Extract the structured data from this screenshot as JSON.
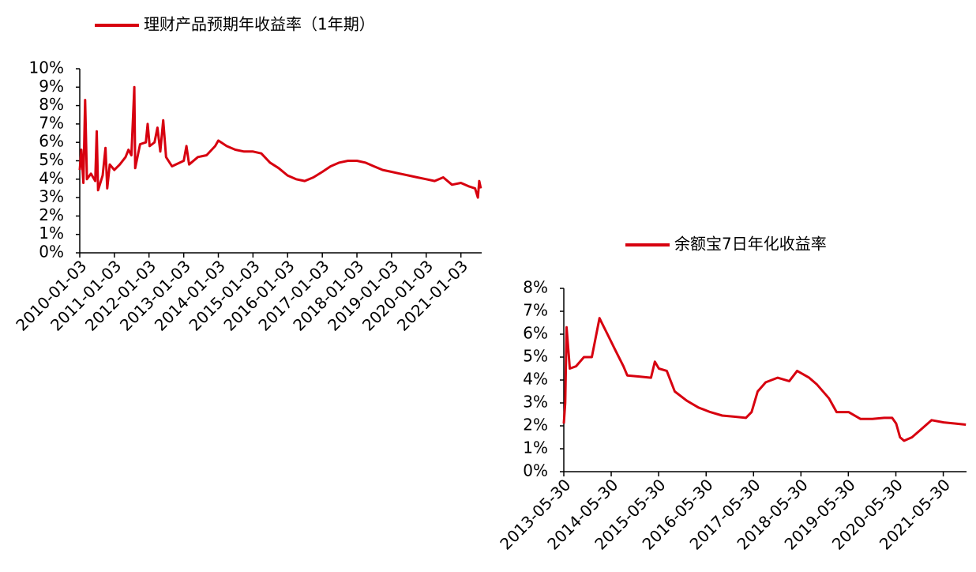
{
  "chart_data": [
    {
      "type": "line",
      "series": [
        {
          "name": "理财产品预期年收益率（1年期）",
          "color": "#d7000f",
          "x": [
            "2010-01-03",
            "2010-01-20",
            "2010-02-10",
            "2010-03-01",
            "2010-03-20",
            "2010-05-01",
            "2010-06-15",
            "2010-07-01",
            "2010-07-15",
            "2010-09-01",
            "2010-10-01",
            "2010-10-20",
            "2010-11-15",
            "2011-01-03",
            "2011-03-01",
            "2011-05-01",
            "2011-06-01",
            "2011-07-01",
            "2011-08-01",
            "2011-08-10",
            "2011-10-01",
            "2011-12-01",
            "2011-12-20",
            "2012-01-10",
            "2012-03-01",
            "2012-04-01",
            "2012-05-01",
            "2012-06-01",
            "2012-07-01",
            "2012-09-01",
            "2013-01-03",
            "2013-02-01",
            "2013-03-01",
            "2013-06-01",
            "2013-09-01",
            "2013-12-01",
            "2014-01-03",
            "2014-04-01",
            "2014-07-01",
            "2014-10-01",
            "2015-01-03",
            "2015-04-01",
            "2015-07-01",
            "2015-10-01",
            "2016-01-03",
            "2016-04-01",
            "2016-07-01",
            "2016-10-01",
            "2017-01-03",
            "2017-04-01",
            "2017-07-01",
            "2017-10-01",
            "2018-01-03",
            "2018-04-01",
            "2018-07-01",
            "2018-10-01",
            "2019-01-03",
            "2019-04-01",
            "2019-07-01",
            "2019-10-01",
            "2020-01-03",
            "2020-04-01",
            "2020-07-01",
            "2020-10-01",
            "2021-01-03",
            "2021-04-01",
            "2021-06-01",
            "2021-07-01",
            "2021-07-15",
            "2021-08-01"
          ],
          "values": [
            4.5,
            5.6,
            3.8,
            8.3,
            4.0,
            4.3,
            3.9,
            6.6,
            3.4,
            4.2,
            5.7,
            3.5,
            4.8,
            4.5,
            4.8,
            5.2,
            5.6,
            5.3,
            9.0,
            4.6,
            5.9,
            6.0,
            7.0,
            5.8,
            6.0,
            6.8,
            5.5,
            7.2,
            5.2,
            4.7,
            5.0,
            5.8,
            4.8,
            5.2,
            5.3,
            5.8,
            6.1,
            5.8,
            5.6,
            5.5,
            5.5,
            5.4,
            4.9,
            4.6,
            4.2,
            4.0,
            3.9,
            4.1,
            4.4,
            4.7,
            4.9,
            5.0,
            5.0,
            4.9,
            4.7,
            4.5,
            4.4,
            4.3,
            4.2,
            4.1,
            4.0,
            3.9,
            4.1,
            3.7,
            3.8,
            3.6,
            3.5,
            3.0,
            3.9,
            3.5
          ]
        }
      ],
      "xlim": [
        "2010-01-03",
        "2021-08-10"
      ],
      "xticks": [
        "2010-01-03",
        "2011-01-03",
        "2012-01-03",
        "2013-01-03",
        "2014-01-03",
        "2015-01-03",
        "2016-01-03",
        "2017-01-03",
        "2018-01-03",
        "2019-01-03",
        "2020-01-03",
        "2021-01-03"
      ],
      "ylim": [
        0,
        10
      ],
      "yticks": [
        {
          "value": 0,
          "label": "0%"
        },
        {
          "value": 1,
          "label": "1%"
        },
        {
          "value": 2,
          "label": "2%"
        },
        {
          "value": 3,
          "label": "3%"
        },
        {
          "value": 4,
          "label": "4%"
        },
        {
          "value": 5,
          "label": "5%"
        },
        {
          "value": 6,
          "label": "6%"
        },
        {
          "value": 7,
          "label": "7%"
        },
        {
          "value": 8,
          "label": "8%"
        },
        {
          "value": 9,
          "label": "9%"
        },
        {
          "value": 10,
          "label": "10%"
        }
      ]
    },
    {
      "type": "line",
      "series": [
        {
          "name": "余额宝7日年化收益率",
          "color": "#d7000f",
          "x": [
            "2013-05-30",
            "2013-06-10",
            "2013-06-20",
            "2013-07-15",
            "2013-09-01",
            "2013-11-01",
            "2014-01-01",
            "2014-03-01",
            "2014-05-01",
            "2014-07-01",
            "2014-09-01",
            "2014-10-01",
            "2015-01-01",
            "2015-04-01",
            "2015-05-01",
            "2015-06-01",
            "2015-08-01",
            "2015-10-01",
            "2016-01-01",
            "2016-04-01",
            "2016-07-01",
            "2016-10-01",
            "2017-01-01",
            "2017-04-01",
            "2017-05-15",
            "2017-07-01",
            "2017-09-01",
            "2017-12-01",
            "2018-03-01",
            "2018-05-01",
            "2018-08-01",
            "2018-10-01",
            "2019-01-01",
            "2019-03-01",
            "2019-06-01",
            "2019-09-01",
            "2019-12-01",
            "2020-03-01",
            "2020-05-01",
            "2020-06-01",
            "2020-07-01",
            "2020-08-01",
            "2020-10-01",
            "2020-12-01",
            "2021-03-01",
            "2021-06-01",
            "2021-09-01",
            "2021-11-20"
          ],
          "values": [
            2.1,
            3.0,
            6.3,
            4.5,
            4.6,
            5.0,
            5.0,
            6.7,
            6.0,
            5.3,
            4.6,
            4.2,
            4.15,
            4.1,
            4.8,
            4.5,
            4.4,
            3.5,
            3.1,
            2.8,
            2.6,
            2.45,
            2.4,
            2.35,
            2.6,
            3.5,
            3.9,
            4.1,
            3.95,
            4.4,
            4.1,
            3.8,
            3.2,
            2.6,
            2.6,
            2.3,
            2.3,
            2.35,
            2.35,
            2.1,
            1.5,
            1.35,
            1.5,
            1.8,
            2.25,
            2.15,
            2.1,
            2.05
          ]
        }
      ],
      "xlim": [
        "2013-05-30",
        "2021-11-25"
      ],
      "xticks": [
        "2013-05-30",
        "2014-05-30",
        "2015-05-30",
        "2016-05-30",
        "2017-05-30",
        "2018-05-30",
        "2019-05-30",
        "2020-05-30",
        "2021-05-30"
      ],
      "ylim": [
        0,
        8
      ],
      "yticks": [
        {
          "value": 0,
          "label": "0%"
        },
        {
          "value": 1,
          "label": "1%"
        },
        {
          "value": 2,
          "label": "2%"
        },
        {
          "value": 3,
          "label": "3%"
        },
        {
          "value": 4,
          "label": "4%"
        },
        {
          "value": 5,
          "label": "5%"
        },
        {
          "value": 6,
          "label": "6%"
        },
        {
          "value": 7,
          "label": "7%"
        },
        {
          "value": 8,
          "label": "8%"
        }
      ]
    }
  ]
}
